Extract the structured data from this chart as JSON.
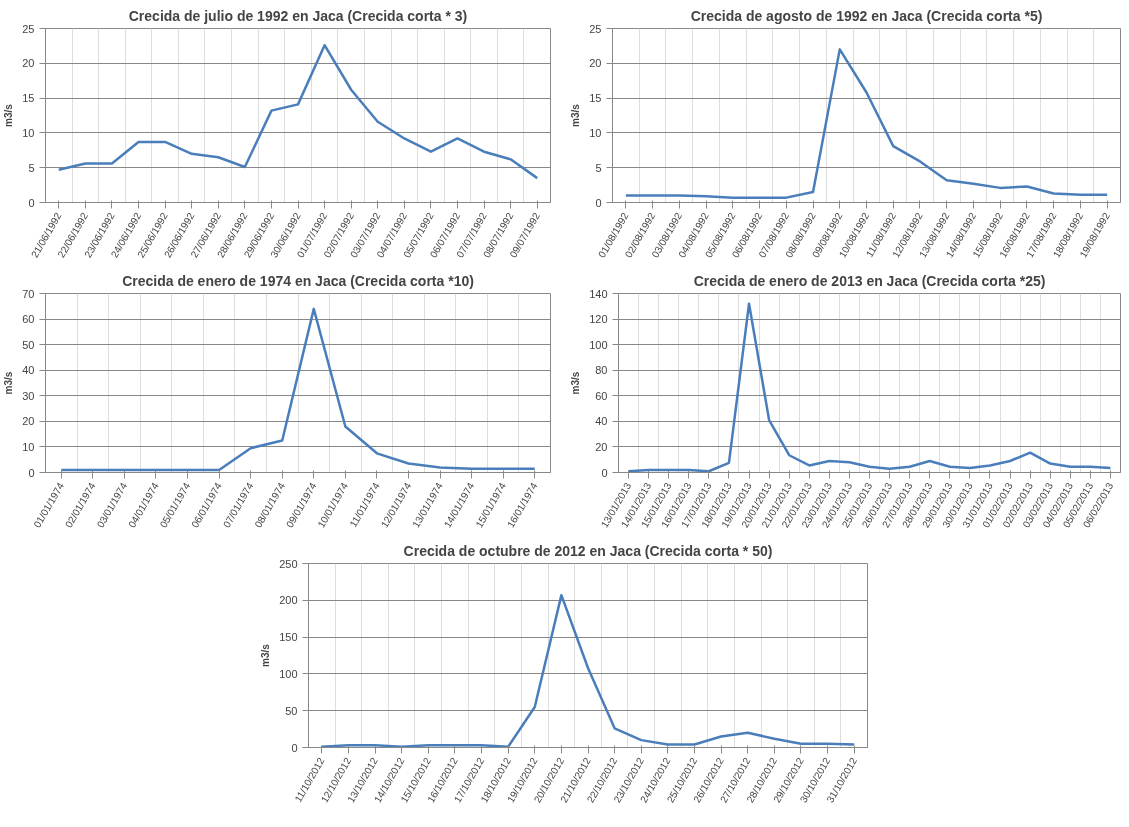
{
  "chart_data": [
    {
      "type": "line",
      "title": "Crecida de julio de 1992 en Jaca (Crecida corta * 3)",
      "ylabel": "m3/s",
      "categories": [
        "21/06/1992",
        "22/06/1992",
        "23/06/1992",
        "24/06/1992",
        "25/06/1992",
        "26/06/1992",
        "27/06/1992",
        "28/06/1992",
        "29/06/1992",
        "30/06/1992",
        "01/07/1992",
        "02/07/1992",
        "03/07/1992",
        "04/07/1992",
        "05/07/1992",
        "06/07/1992",
        "07/07/1992",
        "08/07/1992",
        "09/07/1992"
      ],
      "values": [
        4.7,
        5.6,
        5.6,
        8.7,
        8.7,
        7.0,
        6.5,
        5.1,
        13.2,
        14.1,
        22.6,
        16.2,
        11.6,
        9.2,
        7.3,
        9.2,
        7.3,
        6.2,
        3.5
      ],
      "color": "#4a7ebb",
      "ylim": [
        0,
        25
      ],
      "yticks": [
        0,
        5,
        10,
        15,
        20,
        25
      ],
      "grid": true
    },
    {
      "type": "line",
      "title": "Crecida de agosto de 1992 en Jaca (Crecida corta *5)",
      "ylabel": "m3/s",
      "categories": [
        "01/08/1992",
        "02/08/1992",
        "03/08/1992",
        "04/08/1992",
        "05/08/1992",
        "06/08/1992",
        "07/08/1992",
        "08/08/1992",
        "09/08/1992",
        "10/08/1992",
        "11/08/1992",
        "12/08/1992",
        "13/08/1992",
        "14/08/1992",
        "15/08/1992",
        "16/08/1992",
        "17/08/1992",
        "18/08/1992",
        "19/08/1992"
      ],
      "values": [
        1.0,
        1.0,
        1.0,
        0.9,
        0.7,
        0.7,
        0.7,
        1.5,
        22.0,
        15.8,
        8.1,
        5.9,
        3.2,
        2.7,
        2.1,
        2.3,
        1.3,
        1.1,
        1.1
      ],
      "color": "#4a7ebb",
      "ylim": [
        0,
        25
      ],
      "yticks": [
        0,
        5,
        10,
        15,
        20,
        25
      ],
      "grid": true
    },
    {
      "type": "line",
      "title": "Crecida de enero de 1974 en Jaca (Crecida corta *10)",
      "ylabel": "m3/s",
      "categories": [
        "01/01/1974",
        "02/01/1974",
        "03/01/1974",
        "04/01/1974",
        "05/01/1974",
        "06/01/1974",
        "07/01/1974",
        "08/01/1974",
        "09/01/1974",
        "10/01/1974",
        "11/01/1974",
        "12/01/1974",
        "13/01/1974",
        "14/01/1974",
        "15/01/1974",
        "16/01/1974"
      ],
      "values": [
        1,
        1,
        1,
        1,
        1,
        1,
        9.5,
        12.5,
        64,
        18,
        7.5,
        3.5,
        2,
        1.5,
        1.5,
        1.5
      ],
      "color": "#4a7ebb",
      "ylim": [
        0,
        70
      ],
      "yticks": [
        0,
        10,
        20,
        30,
        40,
        50,
        60,
        70
      ],
      "grid": true
    },
    {
      "type": "line",
      "title": "Crecida de enero de 2013 en Jaca (Crecida corta *25)",
      "ylabel": "m3/s",
      "categories": [
        "13/01/2013",
        "14/01/2013",
        "15/01/2013",
        "16/01/2013",
        "17/01/2013",
        "18/01/2013",
        "19/01/2013",
        "20/01/2013",
        "21/01/2013",
        "22/01/2013",
        "23/01/2013",
        "24/01/2013",
        "25/01/2013",
        "26/01/2013",
        "27/01/2013",
        "28/01/2013",
        "29/01/2013",
        "30/01/2013",
        "31/01/2013",
        "01/02/2013",
        "02/02/2013",
        "03/02/2013",
        "04/02/2013",
        "05/02/2013",
        "06/02/2013"
      ],
      "values": [
        1,
        2,
        2,
        2,
        1,
        7.5,
        132,
        41,
        13.5,
        5.5,
        9,
        8,
        4.5,
        3,
        4.5,
        9,
        4.5,
        3.5,
        5.5,
        9,
        15.5,
        7,
        4.5,
        4.5,
        3.5
      ],
      "color": "#4a7ebb",
      "ylim": [
        0,
        140
      ],
      "yticks": [
        0,
        20,
        40,
        60,
        80,
        100,
        120,
        140
      ],
      "grid": true
    },
    {
      "type": "line",
      "title": "Crecida de octubre de 2012 en Jaca (Crecida corta * 50)",
      "ylabel": "m3/s",
      "categories": [
        "11/10/2012",
        "12/10/2012",
        "13/10/2012",
        "14/10/2012",
        "15/10/2012",
        "16/10/2012",
        "17/10/2012",
        "18/10/2012",
        "19/10/2012",
        "20/10/2012",
        "21/10/2012",
        "22/10/2012",
        "23/10/2012",
        "24/10/2012",
        "25/10/2012",
        "26/10/2012",
        "27/10/2012",
        "28/10/2012",
        "29/10/2012",
        "30/10/2012",
        "31/10/2012"
      ],
      "values": [
        1,
        3,
        3,
        1,
        3,
        3,
        3,
        1,
        55,
        207,
        108,
        26,
        10,
        4,
        4,
        15,
        20,
        12,
        5,
        5,
        4
      ],
      "color": "#4a7ebb",
      "ylim": [
        0,
        250
      ],
      "yticks": [
        0,
        50,
        100,
        150,
        200,
        250
      ],
      "grid": true
    }
  ]
}
